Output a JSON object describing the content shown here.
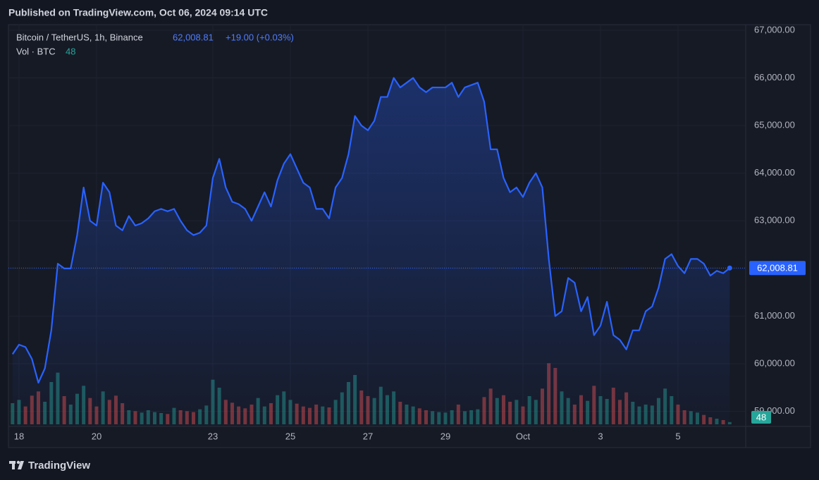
{
  "header": {
    "published": "Published on TradingView.com, Oct 06, 2024 09:14 UTC",
    "brand": "TradingView"
  },
  "chart_data": {
    "type": "line",
    "title": "Bitcoin / TetherUS, 1h, Binance",
    "last_label": "62,008.81",
    "change": "+19.00 (+0.03%)",
    "volume_title": "Vol · BTC",
    "color": "#2962ff",
    "grid": true,
    "categories": [
      null,
      "18",
      null,
      null,
      null,
      null,
      null,
      null,
      null,
      null,
      null,
      null,
      null,
      "20",
      null,
      null,
      null,
      null,
      null,
      null,
      null,
      null,
      null,
      null,
      null,
      null,
      null,
      null,
      null,
      null,
      null,
      "23",
      null,
      null,
      null,
      null,
      null,
      null,
      null,
      null,
      null,
      null,
      null,
      "25",
      null,
      null,
      null,
      null,
      null,
      null,
      null,
      null,
      null,
      null,
      null,
      "27",
      null,
      null,
      null,
      null,
      null,
      null,
      null,
      null,
      null,
      null,
      null,
      "29",
      null,
      null,
      null,
      null,
      null,
      null,
      null,
      null,
      null,
      null,
      null,
      "Oct",
      null,
      null,
      null,
      null,
      null,
      null,
      null,
      null,
      null,
      null,
      null,
      "3",
      null,
      null,
      null,
      null,
      null,
      null,
      null,
      null,
      null,
      null,
      null,
      "5",
      null,
      null,
      null,
      null,
      null,
      null,
      null,
      null
    ],
    "values": [
      60200,
      60400,
      60350,
      60100,
      59600,
      59900,
      60700,
      62100,
      62000,
      62000,
      62700,
      63700,
      63000,
      62900,
      63800,
      63600,
      62900,
      62800,
      63100,
      62900,
      62950,
      63050,
      63200,
      63250,
      63200,
      63250,
      63000,
      62800,
      62700,
      62750,
      62900,
      63900,
      64300,
      63700,
      63400,
      63350,
      63250,
      63000,
      63300,
      63600,
      63300,
      63850,
      64200,
      64400,
      64100,
      63800,
      63700,
      63250,
      63250,
      63050,
      63700,
      63900,
      64400,
      65200,
      65000,
      64900,
      65100,
      65600,
      65600,
      66000,
      65800,
      65900,
      66000,
      65800,
      65700,
      65800,
      65800,
      65800,
      65900,
      65600,
      65800,
      65850,
      65900,
      65500,
      64500,
      64500,
      63900,
      63600,
      63700,
      63500,
      63800,
      64000,
      63700,
      62200,
      61000,
      61100,
      61800,
      61700,
      61100,
      61400,
      60600,
      60800,
      61300,
      60600,
      60500,
      60300,
      60700,
      60700,
      61100,
      61200,
      61600,
      62200,
      62300,
      62050,
      61900,
      62200,
      62200,
      62100,
      61850,
      61950,
      61900,
      62008.81
    ],
    "ylim": [
      58683,
      67118
    ],
    "yticks": [
      {
        "value": 59000,
        "label": "59,000.00"
      },
      {
        "value": 60000,
        "label": "60,000.00"
      },
      {
        "value": 61000,
        "label": "61,000.00"
      },
      {
        "value": 62000,
        "label": "62,000.00"
      },
      {
        "value": 63000,
        "label": "63,000.00"
      },
      {
        "value": 64000,
        "label": "64,000.00"
      },
      {
        "value": 65000,
        "label": "65,000.00"
      },
      {
        "value": 66000,
        "label": "66,000.00"
      },
      {
        "value": 67000,
        "label": "67,000.00"
      }
    ],
    "volume": {
      "up_color": "#26a69a",
      "down_color": "#ef5350",
      "ylim": [
        0,
        1500
      ],
      "values": [
        450,
        520,
        380,
        610,
        700,
        480,
        900,
        1100,
        600,
        420,
        650,
        820,
        560,
        380,
        700,
        520,
        610,
        450,
        300,
        280,
        250,
        300,
        260,
        240,
        220,
        350,
        300,
        280,
        260,
        320,
        400,
        950,
        780,
        520,
        460,
        380,
        340,
        420,
        560,
        380,
        450,
        620,
        700,
        520,
        440,
        380,
        350,
        420,
        380,
        360,
        520,
        680,
        900,
        1050,
        720,
        600,
        560,
        800,
        620,
        700,
        480,
        420,
        380,
        340,
        300,
        280,
        260,
        250,
        300,
        420,
        280,
        300,
        320,
        580,
        760,
        560,
        620,
        480,
        520,
        380,
        600,
        520,
        760,
        1300,
        1200,
        700,
        560,
        420,
        620,
        500,
        820,
        600,
        540,
        780,
        520,
        680,
        480,
        380,
        420,
        400,
        560,
        760,
        600,
        420,
        300,
        280,
        250,
        200,
        150,
        120,
        90,
        48
      ]
    }
  }
}
